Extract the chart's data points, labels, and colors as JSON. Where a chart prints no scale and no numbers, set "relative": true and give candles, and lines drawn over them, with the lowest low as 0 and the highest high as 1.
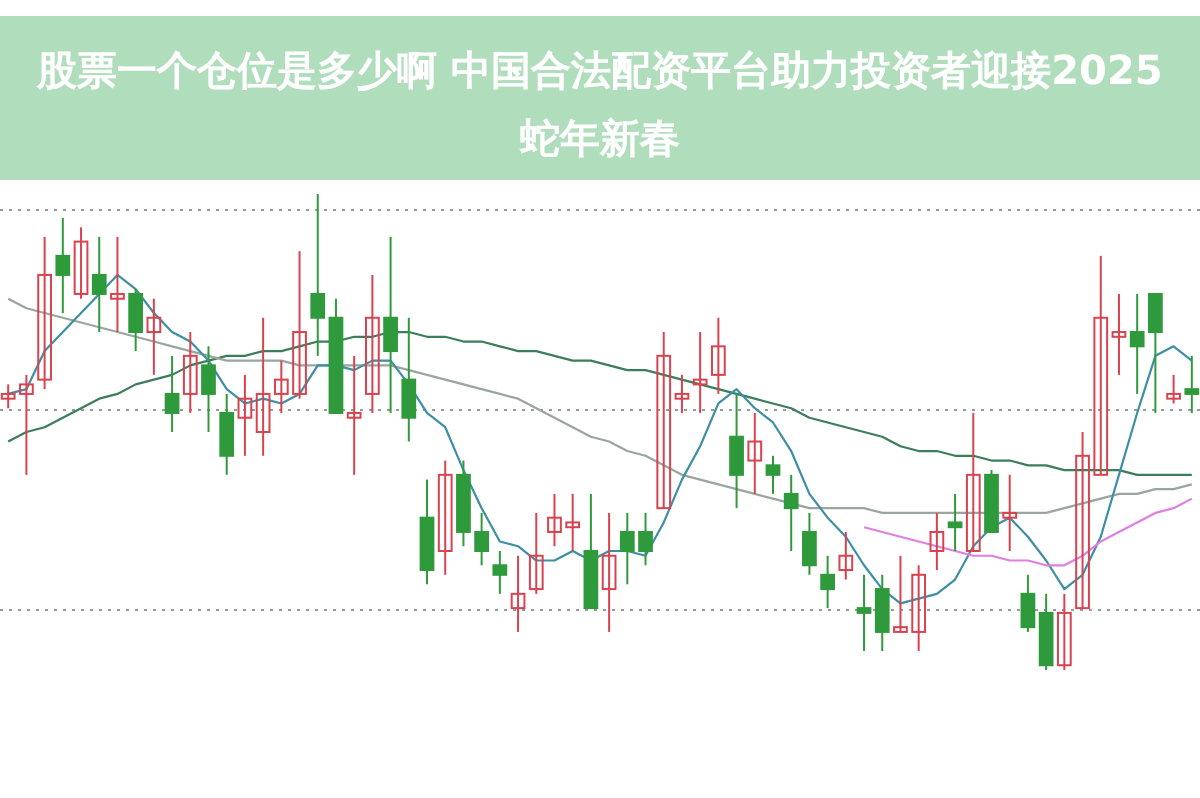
{
  "chart_data": {
    "type": "candlestick",
    "title": "股票一个仓位是多少啊 中国合法配资平台助力投资者迎接2025蛇年新春",
    "relative": true,
    "grid": "y",
    "categories": [
      null,
      null,
      null,
      null,
      null,
      null,
      null,
      null,
      null,
      null,
      null,
      null,
      null,
      null,
      null,
      null,
      null,
      null,
      null,
      null,
      null,
      null,
      null,
      null,
      null,
      null,
      null,
      null,
      null,
      null,
      null,
      null,
      null,
      null,
      null,
      null,
      null,
      null,
      null,
      null,
      null,
      null,
      null,
      null,
      null,
      null,
      null,
      null,
      null,
      null,
      null,
      null,
      null,
      null,
      null,
      null,
      null,
      null,
      null,
      null,
      null,
      null,
      null,
      null,
      null,
      null
    ],
    "ohlc": [
      [
        0.57,
        0.6,
        0.55,
        0.58
      ],
      [
        0.58,
        0.62,
        0.41,
        0.6
      ],
      [
        0.61,
        0.91,
        0.59,
        0.83
      ],
      [
        0.87,
        0.95,
        0.75,
        0.83
      ],
      [
        0.79,
        0.93,
        0.78,
        0.9
      ],
      [
        0.83,
        0.91,
        0.71,
        0.79
      ],
      [
        0.78,
        0.91,
        0.71,
        0.79
      ],
      [
        0.79,
        0.8,
        0.67,
        0.71
      ],
      [
        0.71,
        0.78,
        0.62,
        0.74
      ],
      [
        0.58,
        0.66,
        0.5,
        0.54
      ],
      [
        0.58,
        0.71,
        0.54,
        0.66
      ],
      [
        0.64,
        0.68,
        0.5,
        0.58
      ],
      [
        0.54,
        0.58,
        0.41,
        0.45
      ],
      [
        0.53,
        0.62,
        0.45,
        0.57
      ],
      [
        0.5,
        0.74,
        0.45,
        0.58
      ],
      [
        0.58,
        0.65,
        0.54,
        0.61
      ],
      [
        0.58,
        0.88,
        0.57,
        0.71
      ],
      [
        0.79,
        1,
        0.66,
        0.74
      ],
      [
        0.74,
        0.78,
        0.54,
        0.54
      ],
      [
        0.53,
        0.66,
        0.41,
        0.54
      ],
      [
        0.58,
        0.83,
        0.54,
        0.74
      ],
      [
        0.74,
        0.91,
        0.54,
        0.67
      ],
      [
        0.61,
        0.74,
        0.48,
        0.53
      ],
      [
        0.32,
        0.4,
        0.18,
        0.21
      ],
      [
        0.25,
        0.44,
        0.2,
        0.41
      ],
      [
        0.41,
        0.44,
        0.26,
        0.29
      ],
      [
        0.29,
        0.33,
        0.22,
        0.25
      ],
      [
        0.22,
        0.25,
        0.16,
        0.2
      ],
      [
        0.13,
        0.24,
        0.08,
        0.16
      ],
      [
        0.17,
        0.33,
        0.16,
        0.24
      ],
      [
        0.29,
        0.37,
        0.26,
        0.32
      ],
      [
        0.3,
        0.37,
        0.25,
        0.31
      ],
      [
        0.25,
        0.37,
        0.13,
        0.13
      ],
      [
        0.17,
        0.33,
        0.08,
        0.24
      ],
      [
        0.29,
        0.33,
        0.18,
        0.25
      ],
      [
        0.29,
        0.33,
        0.22,
        0.25
      ],
      [
        0.34,
        0.71,
        0.34,
        0.66
      ],
      [
        0.57,
        0.62,
        0.54,
        0.58
      ],
      [
        0.6,
        0.71,
        0.54,
        0.61
      ],
      [
        0.62,
        0.74,
        0.58,
        0.68
      ],
      [
        0.49,
        0.58,
        0.34,
        0.41
      ],
      [
        0.44,
        0.54,
        0.37,
        0.48
      ],
      [
        0.43,
        0.45,
        0.37,
        0.41
      ],
      [
        0.37,
        0.41,
        0.25,
        0.34
      ],
      [
        0.29,
        0.33,
        0.2,
        0.22
      ],
      [
        0.2,
        0.24,
        0.13,
        0.17
      ],
      [
        0.21,
        0.29,
        0.19,
        0.24
      ],
      [
        0.13,
        0.2,
        0.04,
        0.12
      ],
      [
        0.17,
        0.2,
        0.04,
        0.08
      ],
      [
        0.08,
        0.24,
        0.08,
        0.09
      ],
      [
        0.08,
        0.22,
        0.04,
        0.2
      ],
      [
        0.25,
        0.33,
        0.21,
        0.29
      ],
      [
        0.31,
        0.37,
        0.25,
        0.3
      ],
      [
        0.25,
        0.54,
        0.25,
        0.41
      ],
      [
        0.41,
        0.42,
        0.29,
        0.29
      ],
      [
        0.32,
        0.41,
        0.25,
        0.33
      ],
      [
        0.16,
        0.2,
        0.08,
        0.09
      ],
      [
        0.12,
        0.16,
        0,
        0.01
      ],
      [
        0.01,
        0.16,
        0,
        0.12
      ],
      [
        0.13,
        0.5,
        0.13,
        0.45
      ],
      [
        0.41,
        0.87,
        0.41,
        0.74
      ],
      [
        0.7,
        0.79,
        0.62,
        0.71
      ],
      [
        0.71,
        0.79,
        0.58,
        0.68
      ],
      [
        0.79,
        0.79,
        0.54,
        0.71
      ],
      [
        0.57,
        0.62,
        0.56,
        0.58
      ],
      [
        0.59,
        0.66,
        0.54,
        0.58
      ]
    ],
    "series": [
      {
        "type": "line",
        "color": "#3c7d5a",
        "values": [
          0.48,
          0.5,
          0.51,
          0.53,
          0.55,
          0.57,
          0.58,
          0.6,
          0.61,
          0.62,
          0.64,
          0.65,
          0.66,
          0.66,
          0.67,
          0.67,
          0.68,
          0.69,
          0.69,
          0.7,
          0.7,
          0.71,
          0.71,
          0.7,
          0.7,
          0.69,
          0.69,
          0.68,
          0.67,
          0.67,
          0.66,
          0.65,
          0.65,
          0.64,
          0.63,
          0.63,
          0.62,
          0.61,
          0.6,
          0.59,
          0.58,
          0.57,
          0.56,
          0.55,
          0.53,
          0.52,
          0.51,
          0.5,
          0.49,
          0.47,
          0.46,
          0.46,
          0.45,
          0.45,
          0.44,
          0.44,
          0.43,
          0.43,
          0.42,
          0.42,
          0.42,
          0.42,
          0.41,
          0.41,
          0.41,
          0.41
        ]
      },
      {
        "type": "line",
        "color": "#9aa5a0",
        "values": [
          0.78,
          0.76,
          0.75,
          0.74,
          0.73,
          0.72,
          0.71,
          0.7,
          0.69,
          0.68,
          0.67,
          0.66,
          0.65,
          0.65,
          0.65,
          0.65,
          0.64,
          0.64,
          0.64,
          0.64,
          0.64,
          0.64,
          0.63,
          0.62,
          0.61,
          0.6,
          0.59,
          0.58,
          0.57,
          0.55,
          0.53,
          0.51,
          0.49,
          0.48,
          0.46,
          0.45,
          0.43,
          0.41,
          0.4,
          0.39,
          0.38,
          0.37,
          0.36,
          0.35,
          0.34,
          0.34,
          0.34,
          0.34,
          0.33,
          0.33,
          0.33,
          0.33,
          0.33,
          0.33,
          0.33,
          0.33,
          0.33,
          0.33,
          0.34,
          0.35,
          0.36,
          0.37,
          0.37,
          0.38,
          0.38,
          0.39
        ]
      },
      {
        "type": "line",
        "color": "#3d8fa3",
        "values": [
          0.58,
          0.59,
          0.67,
          0.71,
          0.75,
          0.79,
          0.83,
          0.8,
          0.75,
          0.71,
          0.69,
          0.65,
          0.59,
          0.56,
          0.57,
          0.56,
          0.58,
          0.64,
          0.64,
          0.63,
          0.65,
          0.65,
          0.6,
          0.54,
          0.51,
          0.42,
          0.34,
          0.27,
          0.26,
          0.23,
          0.23,
          0.25,
          0.23,
          0.25,
          0.25,
          0.24,
          0.31,
          0.4,
          0.47,
          0.56,
          0.59,
          0.55,
          0.52,
          0.46,
          0.37,
          0.32,
          0.28,
          0.22,
          0.17,
          0.14,
          0.15,
          0.16,
          0.19,
          0.26,
          0.3,
          0.32,
          0.28,
          0.23,
          0.17,
          0.2,
          0.28,
          0.41,
          0.54,
          0.66,
          0.68,
          0.65
        ]
      },
      {
        "type": "line",
        "color": "#e07fe0",
        "values": [
          null,
          null,
          null,
          null,
          null,
          null,
          null,
          null,
          null,
          null,
          null,
          null,
          null,
          null,
          null,
          null,
          null,
          null,
          null,
          null,
          null,
          null,
          null,
          null,
          null,
          null,
          null,
          null,
          null,
          null,
          null,
          null,
          null,
          null,
          null,
          null,
          null,
          null,
          null,
          null,
          null,
          null,
          null,
          null,
          null,
          null,
          null,
          0.3,
          0.29,
          0.28,
          0.27,
          0.26,
          0.25,
          0.24,
          0.24,
          0.23,
          0.23,
          0.22,
          0.22,
          0.24,
          0.27,
          0.29,
          0.31,
          0.33,
          0.34,
          0.36
        ]
      }
    ]
  }
}
